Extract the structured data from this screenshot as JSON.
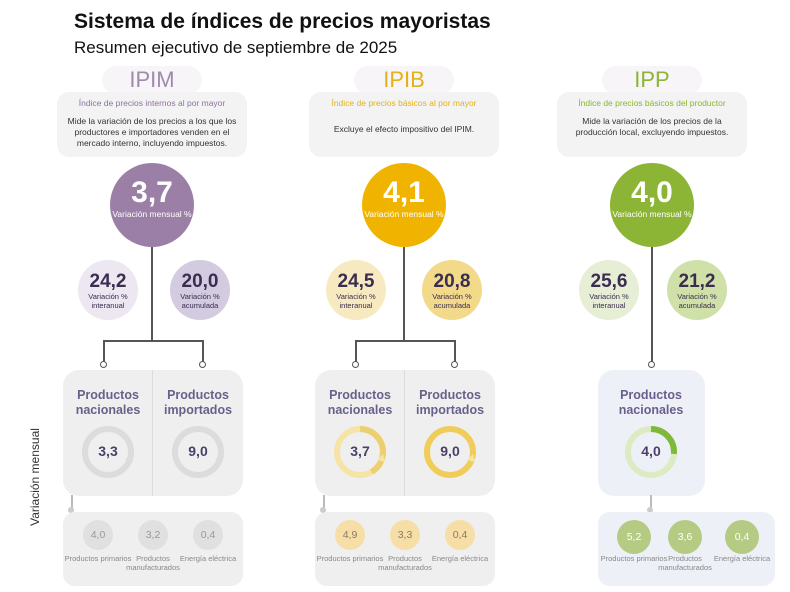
{
  "header": {
    "title": "Sistema de índices de precios mayoristas",
    "subtitle": "Resumen ejecutivo de septiembre de 2025"
  },
  "side_label": "Variación mensual",
  "indices": [
    {
      "name": "IPIM",
      "heading": "Índice de precios internos al por mayor",
      "description": "Mide la variación de los precios a los que los productores e importadores venden en el mercado interno, incluyendo impuestos.",
      "monthly": "3,7",
      "monthly_label": "Variación mensual %",
      "yoy": "24,2",
      "yoy_label": "Variación % interanual",
      "ytd": "20,0",
      "ytd_label": "Variación % acumulada",
      "color": "#9b7fa6",
      "products": [
        {
          "label": "Productos nacionales",
          "value": "3,3"
        },
        {
          "label": "Productos importados",
          "value": "9,0"
        }
      ],
      "breakdown": [
        {
          "value": "4,0",
          "label": "Productos primarios"
        },
        {
          "value": "3,2",
          "label": "Productos manufacturados"
        },
        {
          "value": "0,4",
          "label": "Energía eléctrica"
        }
      ]
    },
    {
      "name": "IPIB",
      "heading": "Índice de precios básicos al por mayor",
      "description": "Excluye el efecto impositivo del IPIM.",
      "monthly": "4,1",
      "monthly_label": "Variación mensual %",
      "yoy": "24,5",
      "yoy_label": "Variación % interanual",
      "ytd": "20,8",
      "ytd_label": "Variación % acumulada",
      "color": "#f0b400",
      "products": [
        {
          "label": "Productos nacionales",
          "value": "3,7"
        },
        {
          "label": "Productos importados",
          "value": "9,0"
        }
      ],
      "breakdown": [
        {
          "value": "4,9",
          "label": "Productos primarios"
        },
        {
          "value": "3,3",
          "label": "Productos manufacturados"
        },
        {
          "value": "0,4",
          "label": "Energía eléctrica"
        }
      ]
    },
    {
      "name": "IPP",
      "heading": "Índice de precios básicos del productor",
      "description": "Mide la variación de los precios de la producción local, excluyendo impuestos.",
      "monthly": "4,0",
      "monthly_label": "Variación mensual %",
      "yoy": "25,6",
      "yoy_label": "Variación % interanual",
      "ytd": "21,2",
      "ytd_label": "Variación % acumulada",
      "color": "#8cb435",
      "products": [
        {
          "label": "Productos nacionales",
          "value": "4,0"
        }
      ],
      "breakdown": [
        {
          "value": "5,2",
          "label": "Productos primarios"
        },
        {
          "value": "3,6",
          "label": "Productos manufacturados"
        },
        {
          "value": "0,4",
          "label": "Energía eléctrica"
        }
      ]
    }
  ]
}
